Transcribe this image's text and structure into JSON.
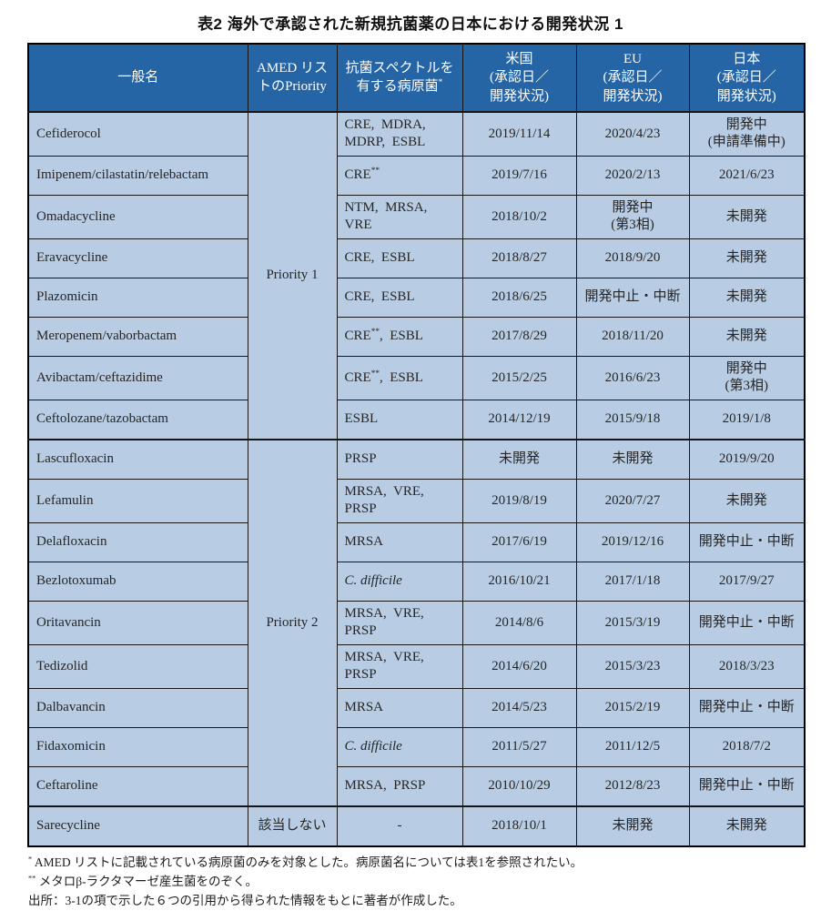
{
  "title": "表2 海外で承認された新規抗菌薬の日本における開発状況 1",
  "colors": {
    "header_bg": "#2565a5",
    "header_text": "#ffffff",
    "row_bg": "#b8cce4",
    "border": "#161616"
  },
  "table": {
    "columns": [
      "一般名",
      "AMED リス\nトのPriority",
      "抗菌スペクトルを\n有する病原菌*",
      "米国\n(承認日／\n開発状況)",
      "EU\n(承認日／\n開発状況)",
      "日本\n(承認日／\n開発状況)"
    ],
    "groups": [
      {
        "priority": "Priority 1",
        "rows": [
          {
            "name": "Cefiderocol",
            "pathogen": "CRE,  MDRA,\nMDRP,  ESBL",
            "us": "2019/11/14",
            "eu": "2020/4/23",
            "japan": "開発中\n(申請準備中)"
          },
          {
            "name": "Imipenem/cilastatin/relebactam",
            "pathogen": "CRE**",
            "us": "2019/7/16",
            "eu": "2020/2/13",
            "japan": "2021/6/23"
          },
          {
            "name": "Omadacycline",
            "pathogen": "NTM,  MRSA,\nVRE",
            "us": "2018/10/2",
            "eu": "開発中\n(第3相)",
            "japan": "未開発"
          },
          {
            "name": "Eravacycline",
            "pathogen": "CRE,  ESBL",
            "us": "2018/8/27",
            "eu": "2018/9/20",
            "japan": "未開発"
          },
          {
            "name": "Plazomicin",
            "pathogen": "CRE,  ESBL",
            "us": "2018/6/25",
            "eu": "開発中止・中断",
            "japan": "未開発"
          },
          {
            "name": "Meropenem/vaborbactam",
            "pathogen": "CRE**,  ESBL",
            "us": "2017/8/29",
            "eu": "2018/11/20",
            "japan": "未開発"
          },
          {
            "name": "Avibactam/ceftazidime",
            "pathogen": "CRE**,  ESBL",
            "us": "2015/2/25",
            "eu": "2016/6/23",
            "japan": "開発中\n(第3相)"
          },
          {
            "name": "Ceftolozane/tazobactam",
            "pathogen": "ESBL",
            "us": "2014/12/19",
            "eu": "2015/9/18",
            "japan": "2019/1/8"
          }
        ]
      },
      {
        "priority": "Priority 2",
        "rows": [
          {
            "name": "Lascufloxacin",
            "pathogen": "PRSP",
            "us": "未開発",
            "eu": "未開発",
            "japan": "2019/9/20"
          },
          {
            "name": "Lefamulin",
            "pathogen": "MRSA,  VRE,\nPRSP",
            "us": "2019/8/19",
            "eu": "2020/7/27",
            "japan": "未開発"
          },
          {
            "name": "Delafloxacin",
            "pathogen": "MRSA",
            "us": "2017/6/19",
            "eu": "2019/12/16",
            "japan": "開発中止・中断"
          },
          {
            "name": "Bezlotoxumab",
            "pathogen": "C. difficile",
            "pathogen_italic": true,
            "us": "2016/10/21",
            "eu": "2017/1/18",
            "japan": "2017/9/27"
          },
          {
            "name": "Oritavancin",
            "pathogen": "MRSA,  VRE,\nPRSP",
            "us": "2014/8/6",
            "eu": "2015/3/19",
            "japan": "開発中止・中断"
          },
          {
            "name": "Tedizolid",
            "pathogen": "MRSA,  VRE,\nPRSP",
            "us": "2014/6/20",
            "eu": "2015/3/23",
            "japan": "2018/3/23"
          },
          {
            "name": "Dalbavancin",
            "pathogen": "MRSA",
            "us": "2014/5/23",
            "eu": "2015/2/19",
            "japan": "開発中止・中断"
          },
          {
            "name": "Fidaxomicin",
            "pathogen": "C. difficile",
            "pathogen_italic": true,
            "us": "2011/5/27",
            "eu": "2011/12/5",
            "japan": "2018/7/2"
          },
          {
            "name": "Ceftaroline",
            "pathogen": "MRSA,  PRSP",
            "us": "2010/10/29",
            "eu": "2012/8/23",
            "japan": "開発中止・中断"
          }
        ]
      },
      {
        "priority": "該当しない",
        "rows": [
          {
            "name": "Sarecycline",
            "pathogen": "-",
            "pathogen_center": true,
            "us": "2018/10/1",
            "eu": "未開発",
            "japan": "未開発"
          }
        ]
      }
    ]
  },
  "footnotes": [
    "* AMED リストに記載されている病原菌のみを対象とした。病原菌名については表1を参照されたい。",
    "** メタロβ-ラクタマーゼ産生菌をのぞく。",
    "出所：3-1の項で示した６つの引用から得られた情報をもとに著者が作成した。"
  ]
}
